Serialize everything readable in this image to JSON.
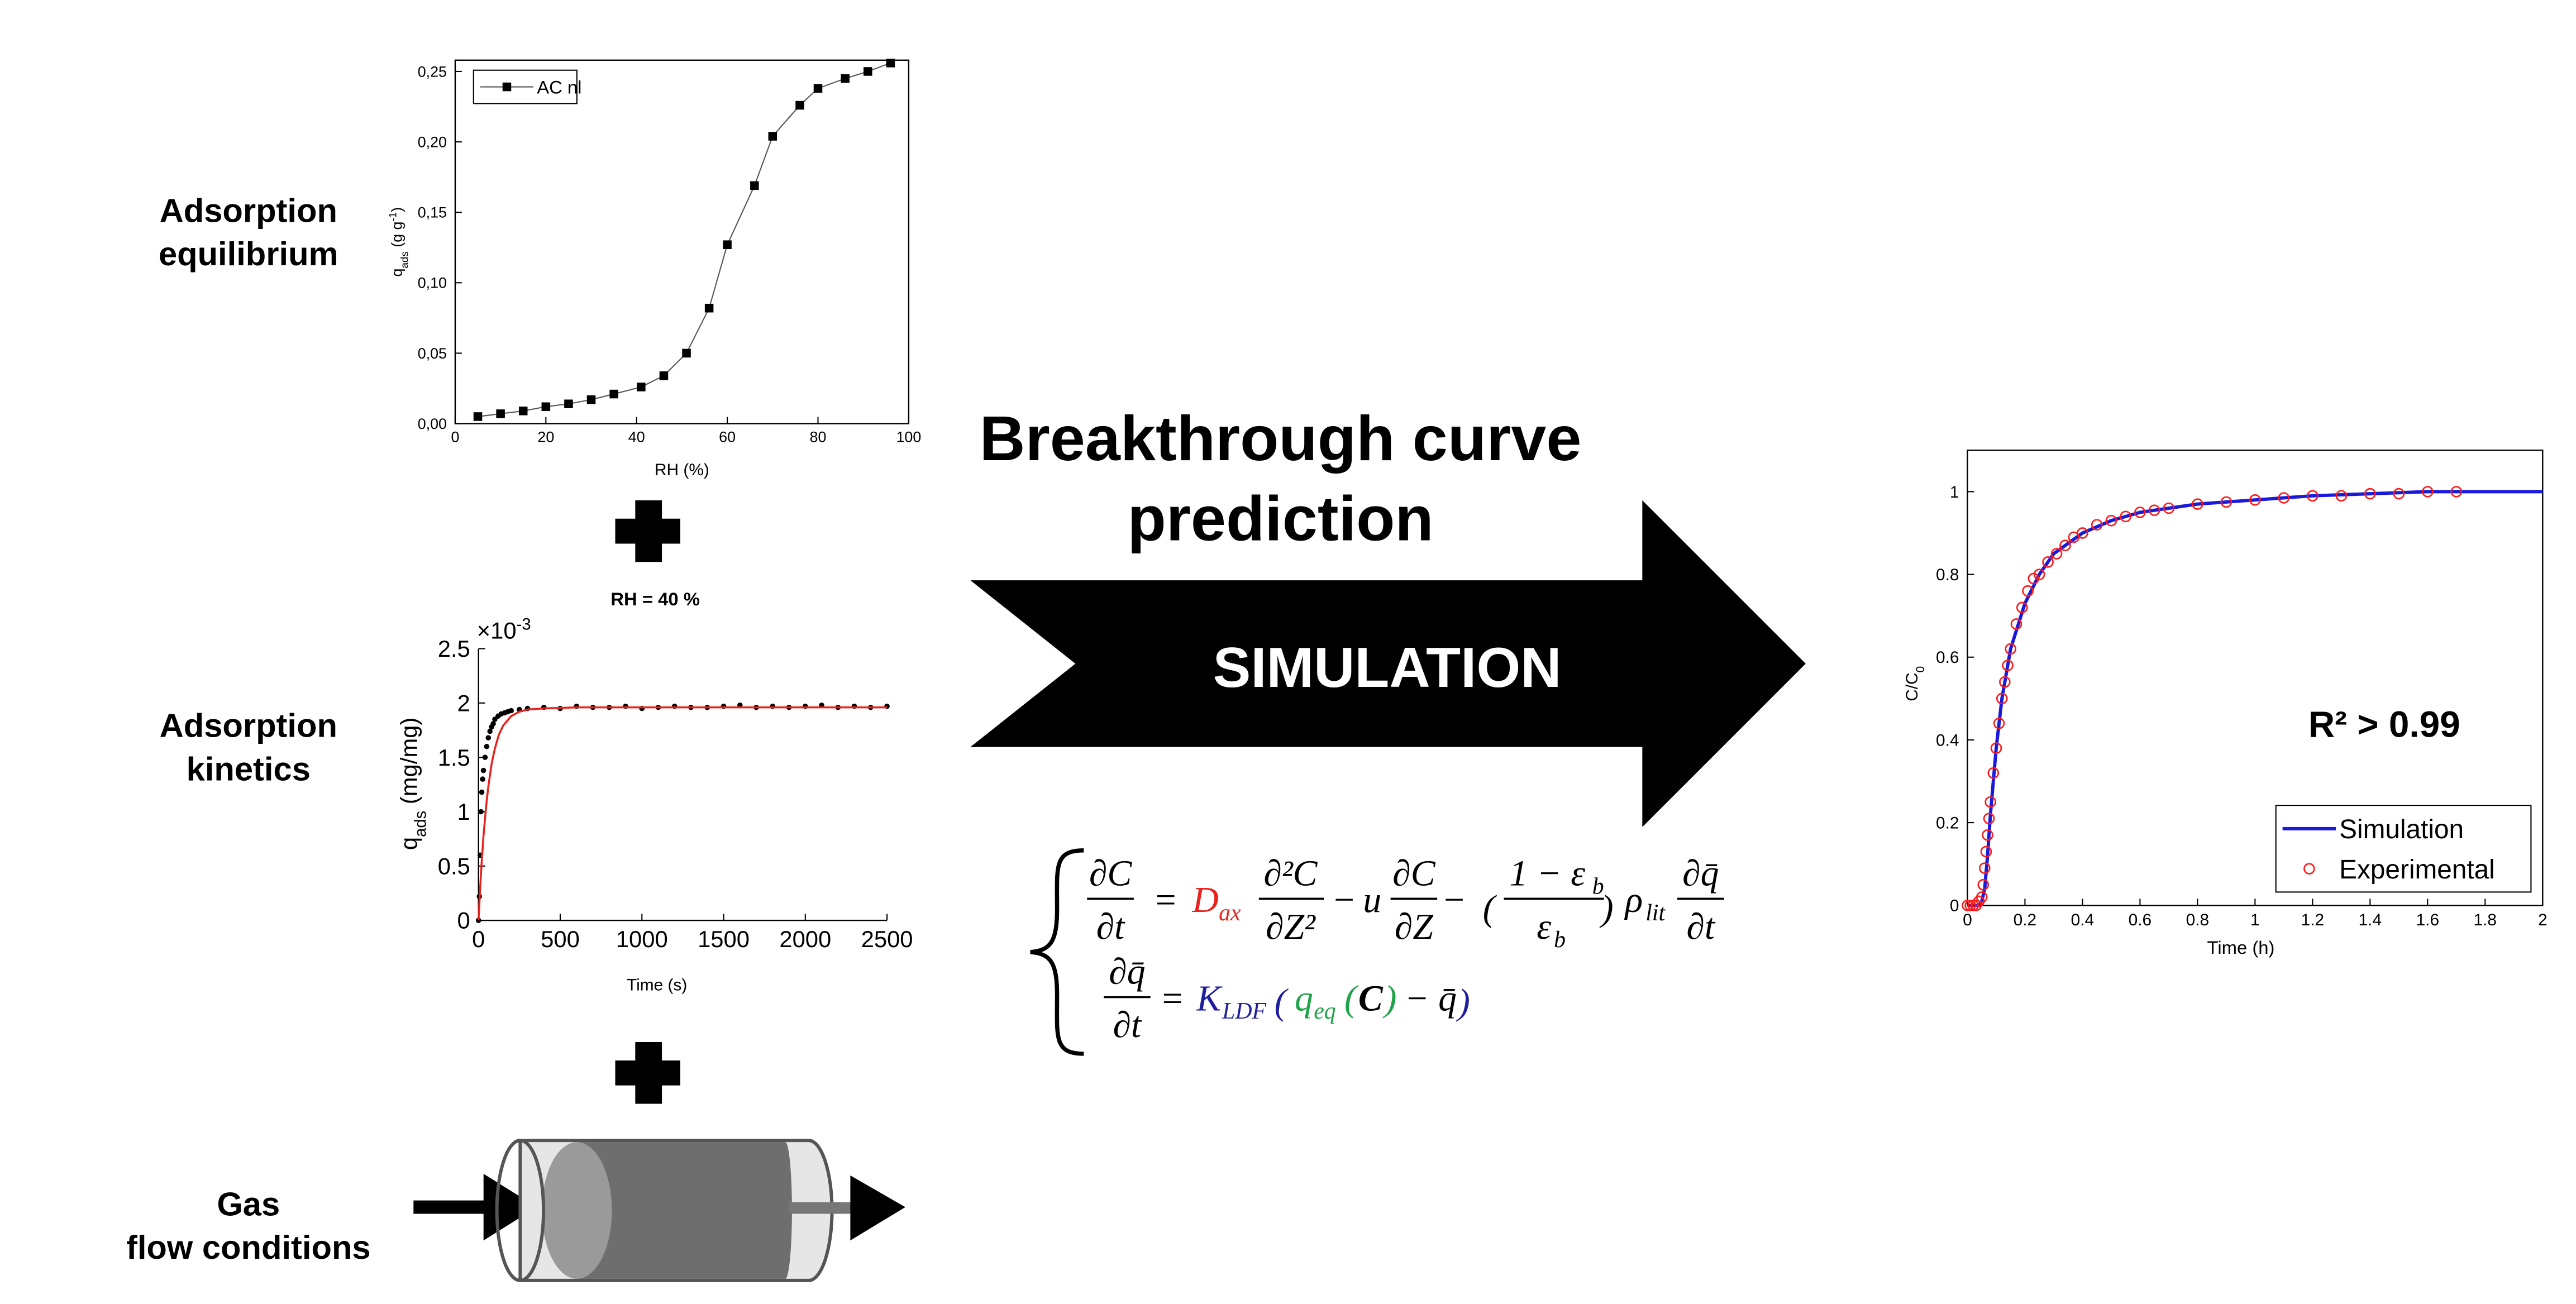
{
  "labels": {
    "equilibrium": [
      "Adsorption",
      "equilibrium"
    ],
    "kinetics": [
      "Adsorption",
      "kinetics"
    ],
    "flow": [
      "Gas",
      "flow conditions"
    ],
    "rh_condition": "RH = 40 %"
  },
  "arrow": {
    "title": [
      "Breakthrough curve",
      "prediction"
    ],
    "label": "SIMULATION"
  },
  "equation": {
    "line1": [
      "∂C",
      "∂t",
      "=",
      "D",
      "ax",
      "∂²C",
      "∂Z²",
      "−",
      "u",
      "∂C",
      "∂Z",
      "−",
      "(",
      "1 − ε",
      "b",
      "ε",
      "b",
      ")",
      "ρ",
      "lit",
      "∂q̄",
      "∂t"
    ],
    "line2": [
      "∂q̄",
      "∂t",
      "=",
      "K",
      "LDF",
      "(",
      "q",
      "eq",
      "(",
      "C",
      ")",
      "− q̄",
      ")"
    ]
  },
  "chart_data": [
    {
      "type": "line",
      "xlabel": "RH (%)",
      "ylabel": [
        "q",
        "ads",
        " (g g",
        "-1",
        ")"
      ],
      "xlim": [
        0,
        100
      ],
      "ylim": [
        0,
        0.258
      ],
      "xticks": [
        0,
        20,
        40,
        60,
        80,
        100
      ],
      "yticks": [
        {
          "value": 0,
          "label": "0,00"
        },
        {
          "value": 0.05,
          "label": "0,05"
        },
        {
          "value": 0.1,
          "label": "0,10"
        },
        {
          "value": 0.15,
          "label": "0,15"
        },
        {
          "value": 0.2,
          "label": "0,20"
        },
        {
          "value": 0.25,
          "label": "0,25"
        }
      ],
      "legend": "upper left",
      "series": [
        {
          "name": "AC nl",
          "color": "#000000",
          "line": true,
          "marker": "square",
          "x": [
            5,
            10,
            15,
            20,
            25,
            30,
            35,
            41,
            46,
            51,
            56,
            60,
            66,
            70,
            76,
            80,
            86,
            91,
            96
          ],
          "values": [
            0.005,
            0.007,
            0.009,
            0.012,
            0.014,
            0.017,
            0.021,
            0.026,
            0.034,
            0.05,
            0.082,
            0.127,
            0.169,
            0.204,
            0.226,
            0.238,
            0.245,
            0.25,
            0.256
          ]
        }
      ]
    },
    {
      "type": "line",
      "xlabel": "Time (s)",
      "ylabel": [
        "q",
        "ads",
        "  (mg/mg)"
      ],
      "multiplier": [
        "×10",
        "-3"
      ],
      "xlim": [
        0,
        2500
      ],
      "ylim": [
        0,
        2.5
      ],
      "xticks": [
        0,
        500,
        1000,
        1500,
        2000,
        2500
      ],
      "yticks": [
        0,
        0.5,
        1,
        1.5,
        2,
        2.5
      ],
      "series": [
        {
          "color": "#000000",
          "line": false,
          "marker": "dot",
          "x": [
            0,
            5,
            10,
            15,
            20,
            25,
            30,
            40,
            50,
            60,
            70,
            80,
            90,
            100,
            120,
            140,
            160,
            180,
            200,
            250,
            300,
            400,
            500,
            600,
            700,
            800,
            900,
            1000,
            1100,
            1200,
            1300,
            1400,
            1500,
            1600,
            1700,
            1800,
            1900,
            2000,
            2100,
            2200,
            2300,
            2400,
            2500
          ],
          "values": [
            0,
            0.22,
            0.6,
            1.0,
            1.18,
            1.3,
            1.38,
            1.5,
            1.6,
            1.68,
            1.74,
            1.78,
            1.81,
            1.85,
            1.88,
            1.9,
            1.91,
            1.92,
            1.93,
            1.94,
            1.95,
            1.96,
            1.95,
            1.97,
            1.96,
            1.96,
            1.97,
            1.95,
            1.96,
            1.97,
            1.96,
            1.96,
            1.97,
            1.98,
            1.96,
            1.97,
            1.96,
            1.97,
            1.98,
            1.96,
            1.97,
            1.96,
            1.97
          ]
        },
        {
          "color": "#e8231e",
          "line": true,
          "marker": null,
          "x": [
            0,
            10,
            20,
            30,
            40,
            50,
            60,
            80,
            100,
            125,
            150,
            200,
            250,
            300,
            400,
            600,
            1000,
            1500,
            2000,
            2500
          ],
          "values": [
            0,
            0.3,
            0.55,
            0.77,
            0.94,
            1.1,
            1.23,
            1.44,
            1.58,
            1.71,
            1.79,
            1.88,
            1.92,
            1.94,
            1.95,
            1.96,
            1.96,
            1.96,
            1.96,
            1.96
          ]
        }
      ]
    },
    {
      "type": "line",
      "xlabel": "Time (h)",
      "ylabel": [
        "C/C",
        "0"
      ],
      "annotation": "R² > 0.99",
      "xlim": [
        0,
        2
      ],
      "ylim": [
        0,
        1.1
      ],
      "xticks": [
        0,
        0.2,
        0.4,
        0.6,
        0.8,
        1,
        1.2,
        1.4,
        1.6,
        1.8,
        2
      ],
      "yticks": [
        0,
        0.2,
        0.4,
        0.6,
        0.8,
        1
      ],
      "legend": "lower right",
      "series": [
        {
          "name": "Simulation",
          "color": "#1a1adb",
          "line": true,
          "marker": null,
          "x": [
            0,
            0.02,
            0.04,
            0.05,
            0.06,
            0.07,
            0.08,
            0.1,
            0.12,
            0.15,
            0.2,
            0.25,
            0.3,
            0.4,
            0.5,
            0.6,
            0.8,
            1,
            1.2,
            1.4,
            1.6,
            1.8,
            2
          ],
          "values": [
            0,
            0,
            0,
            0.01,
            0.04,
            0.12,
            0.22,
            0.38,
            0.5,
            0.62,
            0.73,
            0.8,
            0.85,
            0.9,
            0.93,
            0.95,
            0.97,
            0.98,
            0.99,
            0.995,
            1,
            1,
            1
          ]
        },
        {
          "name": "Experimental",
          "color": "#ff1a1a",
          "line": false,
          "marker": "circle",
          "x": [
            0,
            0.01,
            0.02,
            0.03,
            0.04,
            0.05,
            0.055,
            0.06,
            0.065,
            0.07,
            0.075,
            0.08,
            0.09,
            0.1,
            0.11,
            0.12,
            0.13,
            0.14,
            0.15,
            0.17,
            0.19,
            0.21,
            0.23,
            0.25,
            0.28,
            0.31,
            0.34,
            0.37,
            0.4,
            0.45,
            0.5,
            0.55,
            0.6,
            0.65,
            0.7,
            0.8,
            0.9,
            1,
            1.1,
            1.2,
            1.3,
            1.4,
            1.5,
            1.6,
            1.7
          ],
          "values": [
            0,
            0,
            0,
            0,
            0.01,
            0.02,
            0.05,
            0.09,
            0.13,
            0.17,
            0.21,
            0.25,
            0.32,
            0.38,
            0.44,
            0.5,
            0.54,
            0.58,
            0.62,
            0.68,
            0.72,
            0.76,
            0.79,
            0.8,
            0.83,
            0.85,
            0.87,
            0.89,
            0.9,
            0.92,
            0.93,
            0.94,
            0.95,
            0.955,
            0.96,
            0.97,
            0.975,
            0.98,
            0.985,
            0.99,
            0.99,
            0.995,
            0.995,
            1,
            1
          ]
        }
      ]
    }
  ]
}
